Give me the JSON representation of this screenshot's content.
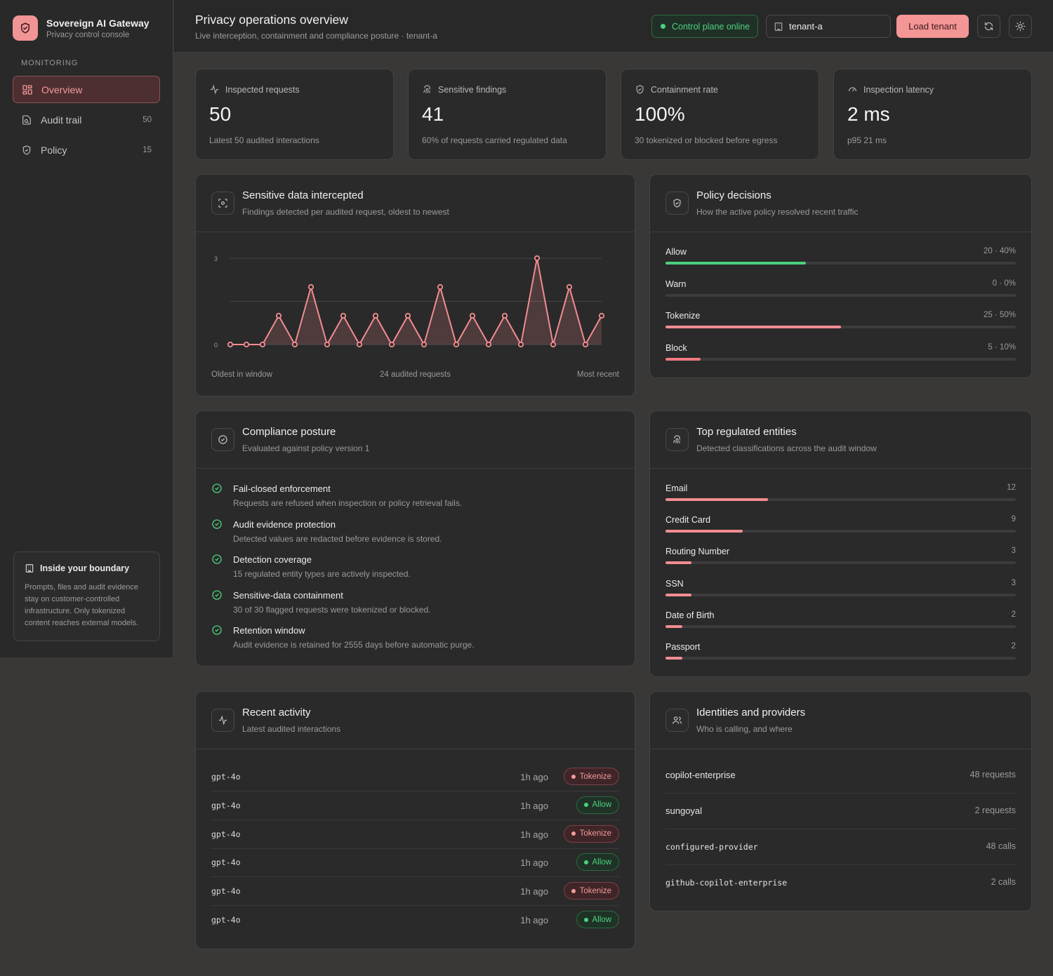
{
  "brand": {
    "title": "Sovereign AI Gateway",
    "subtitle": "Privacy control console"
  },
  "sidebar": {
    "section_label": "MONITORING",
    "items": [
      {
        "label": "Overview",
        "count": ""
      },
      {
        "label": "Audit trail",
        "count": "50"
      },
      {
        "label": "Policy",
        "count": "15"
      }
    ],
    "boundary": {
      "title": "Inside your boundary",
      "text": "Prompts, files and audit evidence stay on customer-controlled infrastructure. Only tokenized content reaches external models."
    }
  },
  "header": {
    "title": "Privacy operations overview",
    "subtitle": "Live interception, containment and compliance posture · tenant-a",
    "status": "Control plane online",
    "tenant_value": "tenant-a",
    "load_label": "Load tenant"
  },
  "stats": [
    {
      "label": "Inspected requests",
      "value": "50",
      "sub": "Latest 50 audited interactions"
    },
    {
      "label": "Sensitive findings",
      "value": "41",
      "sub": "60% of requests carried regulated data"
    },
    {
      "label": "Containment rate",
      "value": "100%",
      "sub": "30 tokenized or blocked before egress"
    },
    {
      "label": "Inspection latency",
      "value": "2 ms",
      "sub": "p95 21 ms"
    }
  ],
  "intercepted": {
    "title": "Sensitive data intercepted",
    "subtitle": "Findings detected per audited request, oldest to newest",
    "x_left": "Oldest in window",
    "x_center": "24 audited requests",
    "x_right": "Most recent"
  },
  "chart_data": {
    "type": "area",
    "title": "Sensitive data intercepted",
    "ylim": [
      0,
      3
    ],
    "y_ticks": [
      "3",
      "0"
    ],
    "grid": true,
    "color": "#f28c92",
    "values": [
      0,
      0,
      0,
      1,
      0,
      2,
      0,
      1,
      0,
      1,
      0,
      1,
      0,
      2,
      0,
      1,
      0,
      1,
      0,
      3,
      0,
      2,
      0,
      1
    ]
  },
  "policy": {
    "title": "Policy decisions",
    "subtitle": "How the active policy resolved recent traffic",
    "rows": [
      {
        "label": "Allow",
        "value": "20 · 40%",
        "pct": 40,
        "color": "#4cd07d"
      },
      {
        "label": "Warn",
        "value": "0 · 0%",
        "pct": 0,
        "color": "#e6b15a"
      },
      {
        "label": "Tokenize",
        "value": "25 · 50%",
        "pct": 50,
        "color": "#f28c92"
      },
      {
        "label": "Block",
        "value": "5 · 10%",
        "pct": 10,
        "color": "#f07a7e"
      }
    ]
  },
  "compliance": {
    "title": "Compliance posture",
    "subtitle": "Evaluated against policy version 1",
    "items": [
      {
        "title": "Fail-closed enforcement",
        "desc": "Requests are refused when inspection or policy retrieval fails."
      },
      {
        "title": "Audit evidence protection",
        "desc": "Detected values are redacted before evidence is stored."
      },
      {
        "title": "Detection coverage",
        "desc": "15 regulated entity types are actively inspected."
      },
      {
        "title": "Sensitive-data containment",
        "desc": "30 of 30 flagged requests were tokenized or blocked."
      },
      {
        "title": "Retention window",
        "desc": "Audit evidence is retained for 2555 days before automatic purge."
      }
    ]
  },
  "entities": {
    "title": "Top regulated entities",
    "subtitle": "Detected classifications across the audit window",
    "max": 41,
    "rows": [
      {
        "label": "Email",
        "value": "12",
        "n": 12
      },
      {
        "label": "Credit Card",
        "value": "9",
        "n": 9
      },
      {
        "label": "Routing Number",
        "value": "3",
        "n": 3
      },
      {
        "label": "SSN",
        "value": "3",
        "n": 3
      },
      {
        "label": "Date of Birth",
        "value": "2",
        "n": 2
      },
      {
        "label": "Passport",
        "value": "2",
        "n": 2
      }
    ]
  },
  "activity": {
    "title": "Recent activity",
    "subtitle": "Latest audited interactions",
    "rows": [
      {
        "model": "gpt-4o",
        "time": "1h ago",
        "action": "Tokenize",
        "kind": "tok"
      },
      {
        "model": "gpt-4o",
        "time": "1h ago",
        "action": "Allow",
        "kind": "allow"
      },
      {
        "model": "gpt-4o",
        "time": "1h ago",
        "action": "Tokenize",
        "kind": "tok"
      },
      {
        "model": "gpt-4o",
        "time": "1h ago",
        "action": "Allow",
        "kind": "allow"
      },
      {
        "model": "gpt-4o",
        "time": "1h ago",
        "action": "Tokenize",
        "kind": "tok"
      },
      {
        "model": "gpt-4o",
        "time": "1h ago",
        "action": "Allow",
        "kind": "allow"
      }
    ]
  },
  "identities": {
    "title": "Identities and providers",
    "subtitle": "Who is calling, and where",
    "rows": [
      {
        "name": "copilot-enterprise",
        "value": "48 requests",
        "mono": false
      },
      {
        "name": "sungoyal",
        "value": "2 requests",
        "mono": false
      },
      {
        "name": "configured-provider",
        "value": "48 calls",
        "mono": true
      },
      {
        "name": "github-copilot-enterprise",
        "value": "2 calls",
        "mono": true
      }
    ]
  }
}
